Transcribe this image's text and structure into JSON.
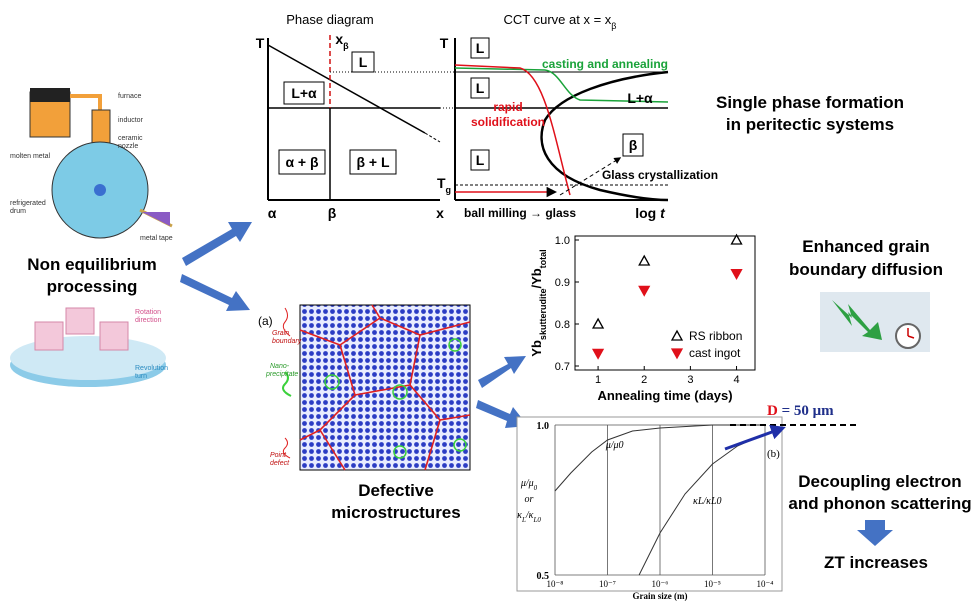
{
  "left": {
    "title_lines": [
      "Non equilibrium",
      "processing"
    ],
    "furnace_labels": [
      "furnace",
      "inductor",
      "ceramic",
      "nozzle",
      "molten metal",
      "refrigerated",
      "drum",
      "metal tape"
    ],
    "mill_labels": [
      "Rotation",
      "direction",
      "Revolution",
      "turn"
    ]
  },
  "phase_diagram": {
    "title": "Phase diagram",
    "t_axis": "T",
    "x_beta": [
      "x",
      "β"
    ],
    "regions": [
      "L",
      "L+α",
      "α + β",
      "β + L"
    ],
    "bottom": [
      "α",
      "β",
      "x"
    ]
  },
  "cct": {
    "title": [
      "CCT curve at x = x",
      "β"
    ],
    "t_axis": "T",
    "tg": [
      "T",
      "g"
    ],
    "regions": [
      "L",
      "L",
      "L",
      "L+α",
      "β"
    ],
    "green": "casting and annealing",
    "red": [
      "rapid",
      "solidification"
    ],
    "glass": "Glass crystallization",
    "bottom": "ball milling → glass",
    "log_t": [
      "log ",
      "t"
    ]
  },
  "right_texts": {
    "single": [
      "Single phase formation",
      "in peritectic systems"
    ],
    "enhanced": [
      "Enhanced grain",
      "boundary diffusion"
    ],
    "decoupling": [
      "Decoupling electron",
      "and phonon scattering"
    ],
    "zt": "ZT increases"
  },
  "micro": {
    "panel": "(a)",
    "labels": [
      "Grain",
      "boundary",
      "Nano-",
      "precipitate",
      "Point",
      "defect"
    ],
    "caption": [
      "Defective",
      "microstructures"
    ]
  },
  "chart_data": [
    {
      "type": "scatter",
      "x_label": "Annealing time (days)",
      "y_label": [
        "Yb",
        "skutterudite",
        "/Yb",
        "total"
      ],
      "xlim": [
        0.5,
        4.4
      ],
      "xticks": [
        1,
        2,
        3,
        4
      ],
      "ylim": [
        0.7,
        1.0
      ],
      "yticks": [
        {
          "value": 1.0,
          "label": "1.0"
        },
        0.9,
        0.8,
        0.7
      ],
      "legend": "lower right",
      "series": [
        {
          "name": "RS ribbon",
          "color": "#000000",
          "marker": "open-triangle-up",
          "x": [
            1,
            2,
            4
          ],
          "values": [
            0.8,
            0.95,
            1.0
          ]
        },
        {
          "name": "cast ingot",
          "color": "#e0101a",
          "marker": "filled-triangle-down",
          "x": [
            1,
            2,
            4
          ],
          "values": [
            0.73,
            0.88,
            0.92
          ]
        }
      ]
    },
    {
      "type": "line",
      "x_label": "Grain size (m)",
      "y_label": [
        "μ/μ",
        "0",
        "or",
        "κ",
        "L",
        "/κ",
        "L0"
      ],
      "log_x": true,
      "grid": true,
      "xlim": [
        1e-08,
        0.0001
      ],
      "xticks": [
        {
          "value": 1e-08,
          "label": "10⁻⁸"
        },
        {
          "value": 1e-07,
          "label": "10⁻⁷"
        },
        {
          "value": 1e-06,
          "label": "10⁻⁶"
        },
        {
          "value": 1e-05,
          "label": "10⁻⁵"
        },
        {
          "value": 0.0001,
          "label": "10⁻⁴"
        }
      ],
      "ylim": [
        0.5,
        1.0
      ],
      "yticks": [
        {
          "value": 1.0,
          "label": "1.0"
        },
        0.5
      ],
      "panel": "(b)",
      "annotation": [
        "D",
        " = 50 μm"
      ],
      "series": [
        {
          "name": "μ/μ0",
          "color": "#333333",
          "x": [
            1e-08,
            2e-08,
            5e-08,
            1e-07,
            3e-07,
            1e-06,
            1e-05,
            0.0001
          ],
          "values": [
            0.78,
            0.84,
            0.91,
            0.95,
            0.98,
            0.99,
            1.0,
            1.0
          ]
        },
        {
          "name": "κL/κL0",
          "color": "#333333",
          "x": [
            4e-07,
            1e-06,
            3e-06,
            1e-05,
            3e-05,
            0.0001
          ],
          "values": [
            0.5,
            0.64,
            0.77,
            0.87,
            0.93,
            0.97
          ]
        }
      ]
    }
  ]
}
